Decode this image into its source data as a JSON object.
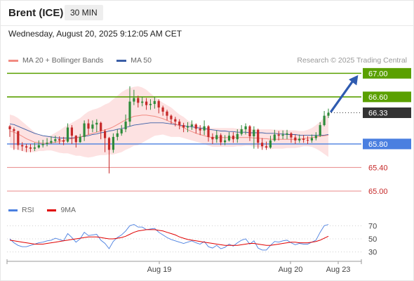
{
  "header": {
    "title": "Brent (ICE)",
    "timeframe": "30 MIN",
    "datetime": "Wednesday, August 20, 2025 9:12:05 AM CET"
  },
  "legend": {
    "ma20_label": "MA 20 + Bollinger Bands",
    "ma50_label": "MA 50",
    "rsi_label": "RSI",
    "ma9_label": "9MA",
    "copyright": "Research © 2025 Trading Central"
  },
  "colors": {
    "ma20": "#f28b82",
    "ma50": "#3b5ea6",
    "bollinger_fill": "#fde2e2",
    "bull_candle": "#2e8b3a",
    "bear_candle": "#c62828",
    "resistance": "#5aa000",
    "support": "#4a7fe0",
    "support_red": "#e88888",
    "current_price": "#333333",
    "arrow": "#2f5bb0",
    "rsi": "#4a7fe0",
    "ma9": "#e00000"
  },
  "chart_data": [
    {
      "type": "candlestick",
      "title": "",
      "ylim": [
        64.88,
        67.1
      ],
      "x_labels": [
        "Aug 19",
        "Aug 20",
        "Aug 23"
      ],
      "price_levels": [
        {
          "value": 67.0,
          "label": "67.00",
          "kind": "resistance"
        },
        {
          "value": 66.6,
          "label": "66.60",
          "kind": "resistance"
        },
        {
          "value": 66.33,
          "label": "66.33",
          "kind": "current"
        },
        {
          "value": 65.8,
          "label": "65.80",
          "kind": "pivot"
        },
        {
          "value": 65.4,
          "label": "65.40",
          "kind": "support"
        },
        {
          "value": 65.0,
          "label": "65.00",
          "kind": "support"
        }
      ],
      "candles_close": [
        66.05,
        66.02,
        65.78,
        65.76,
        65.74,
        65.72,
        65.74,
        65.78,
        65.8,
        65.82,
        65.85,
        65.88,
        65.86,
        65.84,
        66.08,
        65.94,
        65.83,
        65.92,
        66.15,
        66.06,
        66.13,
        66.16,
        66.02,
        65.9,
        65.7,
        65.92,
        65.98,
        66.05,
        66.18,
        66.52,
        66.58,
        66.5,
        66.52,
        66.46,
        66.48,
        66.53,
        66.42,
        66.35,
        66.28,
        66.22,
        66.18,
        66.12,
        66.08,
        66.1,
        66.13,
        66.06,
        66.03,
        66.1,
        65.92,
        65.88,
        65.95,
        65.83,
        65.86,
        65.94,
        65.88,
        65.97,
        66.05,
        66.1,
        65.93,
        66.04,
        65.82,
        65.76,
        65.74,
        65.86,
        65.96,
        65.94,
        65.96,
        65.98,
        65.91,
        65.86,
        65.89,
        65.87,
        65.86,
        65.9,
        65.94,
        66.12,
        66.28,
        66.33
      ],
      "candles_high": [
        66.12,
        66.08,
        65.85,
        65.83,
        65.8,
        65.8,
        65.82,
        65.86,
        65.87,
        65.9,
        65.93,
        65.94,
        65.93,
        65.92,
        66.15,
        66.12,
        65.95,
        65.97,
        66.2,
        66.22,
        66.2,
        66.22,
        66.18,
        66.05,
        65.92,
        65.98,
        66.05,
        66.12,
        66.3,
        66.78,
        66.72,
        66.62,
        66.6,
        66.58,
        66.56,
        66.6,
        66.56,
        66.45,
        66.38,
        66.3,
        66.26,
        66.22,
        66.16,
        66.17,
        66.2,
        66.15,
        66.12,
        66.2,
        66.12,
        65.98,
        66.03,
        65.98,
        65.95,
        66.0,
        66.0,
        66.05,
        66.12,
        66.15,
        66.12,
        66.1,
        66.06,
        65.9,
        65.84,
        65.94,
        66.04,
        66.02,
        66.03,
        66.04,
        66.0,
        65.96,
        65.96,
        65.95,
        65.93,
        65.96,
        66.0,
        66.17,
        66.36,
        66.4
      ],
      "candles_low": [
        65.92,
        65.7,
        65.7,
        65.68,
        65.66,
        65.66,
        65.68,
        65.72,
        65.74,
        65.76,
        65.8,
        65.82,
        65.8,
        65.78,
        65.82,
        65.8,
        65.74,
        65.82,
        65.85,
        65.96,
        66.0,
        66.0,
        65.88,
        65.66,
        65.3,
        65.65,
        65.86,
        65.94,
        66.0,
        66.1,
        66.46,
        66.42,
        66.44,
        66.38,
        66.38,
        66.4,
        66.32,
        66.28,
        66.2,
        66.14,
        66.1,
        66.05,
        66.0,
        66.0,
        66.04,
        65.98,
        65.95,
        65.95,
        65.84,
        65.8,
        65.82,
        65.78,
        65.78,
        65.84,
        65.82,
        65.82,
        65.94,
        65.96,
        65.85,
        65.72,
        65.72,
        65.7,
        65.7,
        65.72,
        65.84,
        65.86,
        65.88,
        65.88,
        65.82,
        65.8,
        65.82,
        65.82,
        65.8,
        65.82,
        65.86,
        65.92,
        66.1,
        66.24
      ],
      "ma20": [
        66.02,
        66.0,
        65.97,
        65.93,
        65.89,
        65.86,
        65.83,
        65.82,
        65.81,
        65.81,
        65.82,
        65.83,
        65.84,
        65.86,
        65.88,
        65.89,
        65.9,
        65.92,
        65.94,
        65.96,
        65.98,
        66.0,
        66.02,
        66.04,
        66.06,
        66.09,
        66.13,
        66.17,
        66.21,
        66.24,
        66.27,
        66.28,
        66.29,
        66.29,
        66.28,
        66.27,
        66.25,
        66.23,
        66.2,
        66.17,
        66.14,
        66.11,
        66.08,
        66.04,
        66.01,
        65.98,
        65.96,
        65.94,
        65.92,
        65.91,
        65.91,
        65.91,
        65.91,
        65.91,
        65.91,
        65.91,
        65.91,
        65.91,
        65.91,
        65.9,
        65.9,
        65.89,
        65.89,
        65.88,
        65.88,
        65.88,
        65.88,
        65.88,
        65.88,
        65.88,
        65.88,
        65.89,
        65.9,
        65.91,
        65.92,
        65.93,
        65.94,
        65.95
      ],
      "bb_upper": [
        66.3,
        66.28,
        66.24,
        66.18,
        66.12,
        66.06,
        66.0,
        65.96,
        65.94,
        65.93,
        65.95,
        65.99,
        66.03,
        66.08,
        66.12,
        66.16,
        66.2,
        66.24,
        66.3,
        66.35,
        66.38,
        66.4,
        66.43,
        66.47,
        66.5,
        66.56,
        66.62,
        66.68,
        66.72,
        66.75,
        66.77,
        66.78,
        66.76,
        66.72,
        66.66,
        66.6,
        66.55,
        66.5,
        66.46,
        66.42,
        66.36,
        66.3,
        66.26,
        66.2,
        66.16,
        66.12,
        66.1,
        66.08,
        66.07,
        66.07,
        66.07,
        66.07,
        66.07,
        66.07,
        66.07,
        66.06,
        66.06,
        66.05,
        66.05,
        66.05,
        66.05,
        66.05,
        66.05,
        66.05,
        66.04,
        66.04,
        66.04,
        66.03,
        66.03,
        66.03,
        66.02,
        66.02,
        66.04,
        66.07,
        66.12,
        66.18,
        66.25,
        66.32
      ],
      "bb_lower": [
        65.74,
        65.72,
        65.7,
        65.68,
        65.66,
        65.66,
        65.66,
        65.68,
        65.68,
        65.69,
        65.69,
        65.67,
        65.65,
        65.64,
        65.64,
        65.62,
        65.6,
        65.6,
        65.58,
        65.57,
        65.58,
        65.6,
        65.61,
        65.61,
        65.62,
        65.62,
        65.64,
        65.66,
        65.7,
        65.73,
        65.77,
        65.78,
        65.82,
        65.86,
        65.9,
        65.94,
        65.95,
        65.96,
        65.94,
        65.92,
        65.92,
        65.92,
        65.9,
        65.88,
        65.86,
        65.84,
        65.82,
        65.8,
        65.77,
        65.75,
        65.75,
        65.75,
        65.75,
        65.75,
        65.75,
        65.76,
        65.76,
        65.77,
        65.77,
        65.75,
        65.75,
        65.73,
        65.73,
        65.71,
        65.72,
        65.72,
        65.72,
        65.73,
        65.73,
        65.73,
        65.74,
        65.76,
        65.76,
        65.75,
        65.72,
        65.68,
        65.63,
        65.58
      ],
      "ma50": [
        66.14,
        66.13,
        66.1,
        66.07,
        66.04,
        66.01,
        65.98,
        65.96,
        65.94,
        65.93,
        65.92,
        65.91,
        65.9,
        65.9,
        65.9,
        65.9,
        65.91,
        65.92,
        65.93,
        65.94,
        65.96,
        65.97,
        65.99,
        66.0,
        66.02,
        66.03,
        66.05,
        66.06,
        66.08,
        66.1,
        66.12,
        66.13,
        66.14,
        66.15,
        66.16,
        66.16,
        66.16,
        66.16,
        66.15,
        66.14,
        66.13,
        66.12,
        66.11,
        66.1,
        66.09,
        66.08,
        66.07,
        66.06,
        66.05,
        66.04,
        66.03,
        66.02,
        66.02,
        66.01,
        66.01,
        66.0,
        66.0,
        66.0,
        65.99,
        65.99,
        65.99,
        65.99,
        65.98,
        65.98,
        65.98,
        65.97,
        65.97,
        65.96,
        65.96,
        65.96,
        65.95,
        65.95,
        65.95,
        65.95,
        65.95,
        65.95,
        65.95,
        65.96
      ]
    },
    {
      "type": "line",
      "title": "",
      "ylim": [
        20,
        80
      ],
      "y_ticks": [
        "70",
        "50",
        "30"
      ],
      "series": [
        {
          "name": "RSI",
          "values": [
            50,
            44,
            40,
            38,
            38,
            40,
            42,
            44,
            45,
            47,
            48,
            51,
            49,
            47,
            58,
            52,
            45,
            50,
            60,
            55,
            56,
            57,
            48,
            43,
            35,
            46,
            52,
            56,
            62,
            70,
            72,
            68,
            68,
            64,
            65,
            66,
            60,
            56,
            52,
            49,
            47,
            45,
            43,
            45,
            47,
            44,
            42,
            46,
            38,
            36,
            40,
            35,
            37,
            42,
            39,
            44,
            48,
            50,
            42,
            47,
            36,
            33,
            33,
            40,
            46,
            45,
            47,
            48,
            44,
            41,
            43,
            42,
            42,
            45,
            48,
            60,
            70,
            72
          ]
        },
        {
          "name": "9MA",
          "values": [
            48,
            47,
            46,
            45,
            44,
            43,
            42,
            42,
            42,
            43,
            44,
            45,
            46,
            47,
            48,
            49,
            50,
            51,
            52,
            53,
            53,
            53,
            52,
            51,
            50,
            50,
            51,
            52,
            54,
            57,
            60,
            62,
            63,
            64,
            64,
            64,
            63,
            62,
            60,
            58,
            56,
            53,
            51,
            49,
            48,
            47,
            46,
            45,
            44,
            43,
            42,
            41,
            40,
            40,
            40,
            40,
            41,
            42,
            43,
            43,
            42,
            41,
            40,
            40,
            41,
            42,
            43,
            44,
            45,
            45,
            44,
            44,
            44,
            45,
            46,
            48,
            51,
            54
          ]
        }
      ]
    }
  ]
}
